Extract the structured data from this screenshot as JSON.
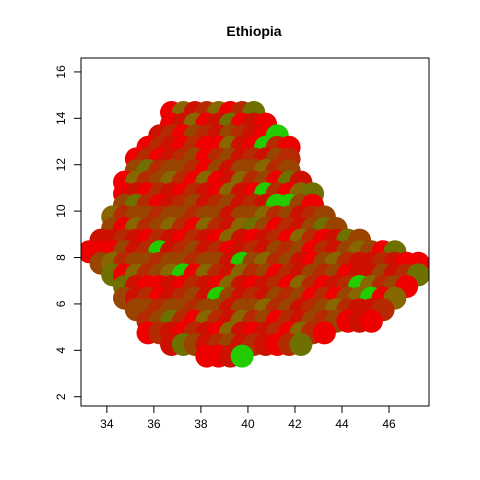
{
  "chart_data": {
    "type": "scatter",
    "title": "Ethiopia",
    "xlabel": "",
    "ylabel": "",
    "xlim": [
      32.9,
      47.7
    ],
    "ylim": [
      1.6,
      16.6
    ],
    "x_ticks": [
      34,
      36,
      38,
      40,
      42,
      44,
      46
    ],
    "y_ticks": [
      2,
      4,
      6,
      8,
      10,
      12,
      14,
      16
    ],
    "grid": false,
    "legend": "none",
    "colors": {
      "red": "#ee0000",
      "dark_red": "#cc1100",
      "red_brown": "#b52a00",
      "brown": "#994400",
      "olive_brown": "#886600",
      "olive": "#6e7000",
      "green": "#22cc00"
    },
    "grid_cells": [
      {
        "y": 14.25,
        "x_ranges": [
          [
            36.75,
            40.25
          ]
        ]
      },
      {
        "y": 13.75,
        "x_ranges": [
          [
            36.75,
            40.75
          ]
        ]
      },
      {
        "y": 13.25,
        "x_ranges": [
          [
            36.25,
            41.25
          ]
        ]
      },
      {
        "y": 12.75,
        "x_ranges": [
          [
            35.75,
            41.75
          ]
        ]
      },
      {
        "y": 12.25,
        "x_ranges": [
          [
            35.25,
            41.75
          ]
        ]
      },
      {
        "y": 11.75,
        "x_ranges": [
          [
            35.25,
            41.75
          ]
        ]
      },
      {
        "y": 11.25,
        "x_ranges": [
          [
            34.75,
            42.25
          ]
        ]
      },
      {
        "y": 10.75,
        "x_ranges": [
          [
            34.75,
            42.75
          ]
        ]
      },
      {
        "y": 10.25,
        "x_ranges": [
          [
            34.75,
            42.75
          ]
        ]
      },
      {
        "y": 9.75,
        "x_ranges": [
          [
            34.25,
            43.25
          ]
        ]
      },
      {
        "y": 9.25,
        "x_ranges": [
          [
            34.25,
            43.75
          ]
        ]
      },
      {
        "y": 8.75,
        "x_ranges": [
          [
            33.75,
            44.75
          ]
        ]
      },
      {
        "y": 8.25,
        "x_ranges": [
          [
            33.25,
            46.25
          ]
        ]
      },
      {
        "y": 7.75,
        "x_ranges": [
          [
            33.75,
            47.25
          ]
        ]
      },
      {
        "y": 7.25,
        "x_ranges": [
          [
            34.25,
            47.25
          ]
        ]
      },
      {
        "y": 6.75,
        "x_ranges": [
          [
            34.75,
            46.75
          ]
        ]
      },
      {
        "y": 6.25,
        "x_ranges": [
          [
            34.75,
            46.25
          ]
        ]
      },
      {
        "y": 5.75,
        "x_ranges": [
          [
            35.25,
            45.75
          ]
        ]
      },
      {
        "y": 5.25,
        "x_ranges": [
          [
            35.75,
            45.25
          ]
        ]
      },
      {
        "y": 4.75,
        "x_ranges": [
          [
            35.75,
            43.25
          ]
        ]
      },
      {
        "y": 4.25,
        "x_ranges": [
          [
            36.75,
            42.25
          ]
        ]
      },
      {
        "y": 3.75,
        "x_ranges": [
          [
            38.25,
            39.75
          ]
        ]
      }
    ],
    "green_points": [
      [
        41.25,
        13.25
      ],
      [
        40.75,
        12.75
      ],
      [
        40.75,
        10.75
      ],
      [
        41.25,
        10.25
      ],
      [
        41.75,
        10.25
      ],
      [
        39.75,
        3.75
      ],
      [
        44.75,
        6.75
      ],
      [
        45.25,
        6.25
      ],
      [
        38.75,
        6.25
      ],
      [
        39.75,
        7.75
      ],
      [
        37.25,
        7.25
      ],
      [
        36.25,
        8.25
      ]
    ],
    "olive_points": [
      [
        42.75,
        10.75
      ],
      [
        41.75,
        11.25
      ],
      [
        46.25,
        8.25
      ],
      [
        47.25,
        7.25
      ],
      [
        42.25,
        4.25
      ],
      [
        37.25,
        4.25
      ],
      [
        35.75,
        11.75
      ],
      [
        35.25,
        10.25
      ],
      [
        34.25,
        7.25
      ],
      [
        34.75,
        6.75
      ],
      [
        43.25,
        9.25
      ],
      [
        44.25,
        8.75
      ],
      [
        40.25,
        14.25
      ],
      [
        39.25,
        13.75
      ],
      [
        36.75,
        5.25
      ],
      [
        40.25,
        9.25
      ]
    ],
    "red_points": [
      [
        38.25,
        12.75
      ],
      [
        38.25,
        12.25
      ],
      [
        38.25,
        11.75
      ],
      [
        38.75,
        11.25
      ],
      [
        40.75,
        13.75
      ],
      [
        38.25,
        3.75
      ],
      [
        38.75,
        3.75
      ],
      [
        35.75,
        4.75
      ],
      [
        45.25,
        5.25
      ],
      [
        47.25,
        7.75
      ],
      [
        46.75,
        6.75
      ],
      [
        33.75,
        8.25
      ],
      [
        34.25,
        8.25
      ],
      [
        35.25,
        12.25
      ],
      [
        36.75,
        14.25
      ],
      [
        41.25,
        4.25
      ],
      [
        37.25,
        13.25
      ],
      [
        39.25,
        8.25
      ],
      [
        40.25,
        8.75
      ],
      [
        42.75,
        7.75
      ],
      [
        43.75,
        6.25
      ],
      [
        36.25,
        6.75
      ],
      [
        34.75,
        10.75
      ],
      [
        44.25,
        5.25
      ]
    ]
  }
}
